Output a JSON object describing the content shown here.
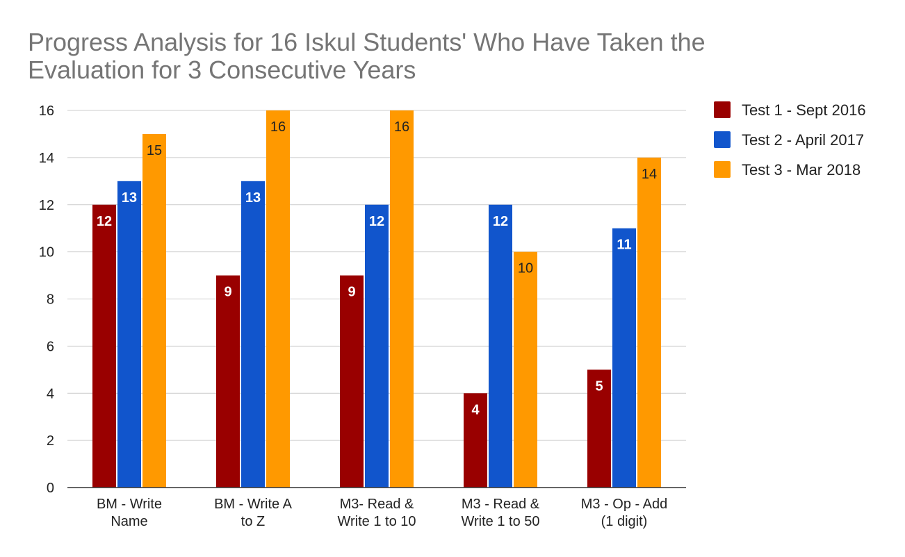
{
  "chart_data": {
    "type": "bar",
    "title_lines": [
      "Progress Analysis for 16 Iskul Students' Who Have Taken the",
      "Evaluation for 3 Consecutive Years"
    ],
    "categories": [
      [
        "BM - Write",
        "Name"
      ],
      [
        "BM - Write A",
        "to Z"
      ],
      [
        "M3- Read &",
        "Write 1 to 10"
      ],
      [
        "M3 - Read &",
        "Write 1 to 50"
      ],
      [
        "M3 - Op - Add",
        "(1 digit)"
      ]
    ],
    "series": [
      {
        "name": "Test 1 - Sept 2016",
        "color": "#990000",
        "label_color": "#ffffff",
        "values": [
          12,
          9,
          9,
          4,
          5
        ]
      },
      {
        "name": "Test 2 - April 2017",
        "color": "#1155cc",
        "label_color": "#ffffff",
        "values": [
          13,
          13,
          12,
          12,
          11
        ]
      },
      {
        "name": "Test 3 - Mar 2018",
        "color": "#ff9900",
        "label_color": "#222222",
        "values": [
          15,
          16,
          16,
          10,
          14
        ]
      }
    ],
    "y_ticks": [
      "0",
      "2",
      "4",
      "6",
      "8",
      "10",
      "12",
      "14",
      "16"
    ],
    "ylim": [
      0,
      16
    ],
    "grid": true,
    "legend_position": "right"
  }
}
